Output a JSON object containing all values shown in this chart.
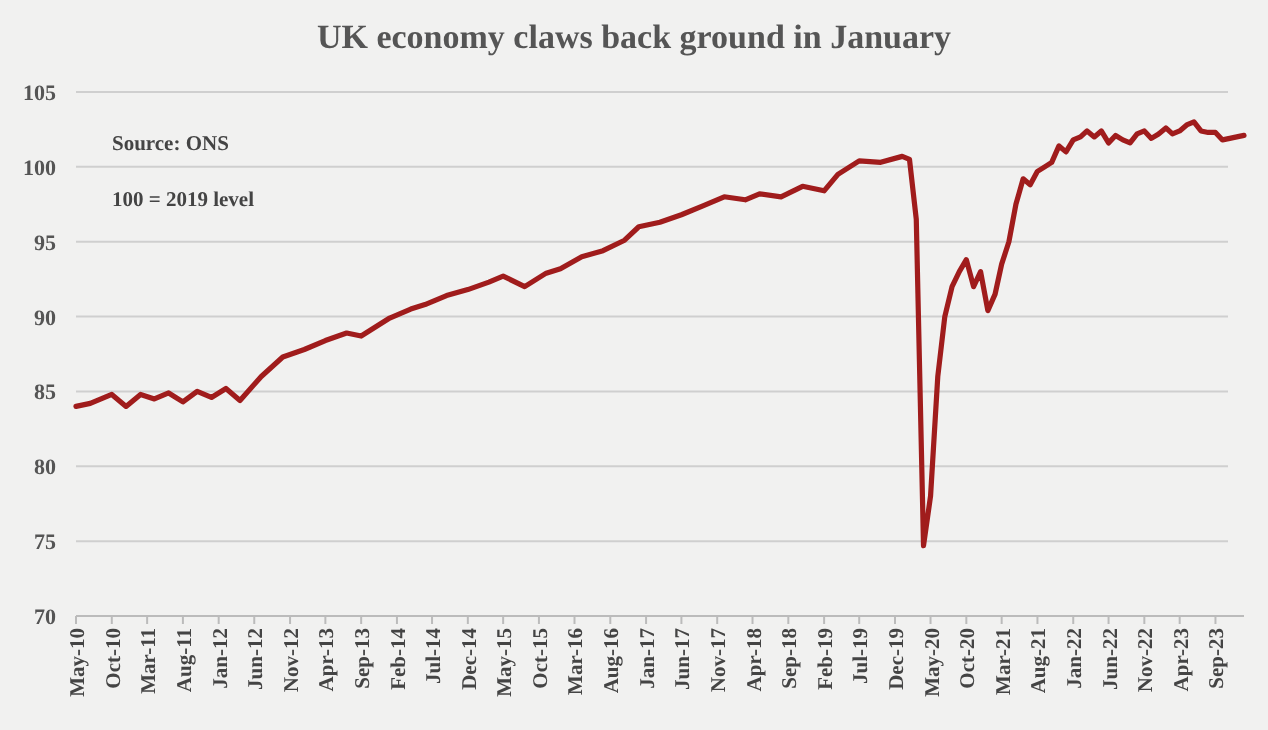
{
  "chart_data": {
    "type": "line",
    "title": "UK economy claws back ground in January",
    "annotations": [
      "Source: ONS",
      "100 = 2019 level"
    ],
    "ylim": [
      70,
      105
    ],
    "yticks": [
      70,
      75,
      80,
      85,
      90,
      95,
      100,
      105
    ],
    "grid": "y",
    "marker": "none",
    "line_style": "solid",
    "xlim": [
      "2010-05",
      "2024-01"
    ],
    "xticks": [
      {
        "value": "2010-05",
        "label": "May-10"
      },
      {
        "value": "2010-10",
        "label": "Oct-10"
      },
      {
        "value": "2011-03",
        "label": "Mar-11"
      },
      {
        "value": "2011-08",
        "label": "Aug-11"
      },
      {
        "value": "2012-01",
        "label": "Jan-12"
      },
      {
        "value": "2012-06",
        "label": "Jun-12"
      },
      {
        "value": "2012-11",
        "label": "Nov-12"
      },
      {
        "value": "2013-04",
        "label": "Apr-13"
      },
      {
        "value": "2013-09",
        "label": "Sep-13"
      },
      {
        "value": "2014-02",
        "label": "Feb-14"
      },
      {
        "value": "2014-07",
        "label": "Jul-14"
      },
      {
        "value": "2014-12",
        "label": "Dec-14"
      },
      {
        "value": "2015-05",
        "label": "May-15"
      },
      {
        "value": "2015-10",
        "label": "Oct-15"
      },
      {
        "value": "2016-03",
        "label": "Mar-16"
      },
      {
        "value": "2016-08",
        "label": "Aug-16"
      },
      {
        "value": "2017-01",
        "label": "Jan-17"
      },
      {
        "value": "2017-06",
        "label": "Jun-17"
      },
      {
        "value": "2017-11",
        "label": "Nov-17"
      },
      {
        "value": "2018-04",
        "label": "Apr-18"
      },
      {
        "value": "2018-09",
        "label": "Sep-18"
      },
      {
        "value": "2019-02",
        "label": "Feb-19"
      },
      {
        "value": "2019-07",
        "label": "Jul-19"
      },
      {
        "value": "2019-12",
        "label": "Dec-19"
      },
      {
        "value": "2020-05",
        "label": "May-20"
      },
      {
        "value": "2020-10",
        "label": "Oct-20"
      },
      {
        "value": "2021-03",
        "label": "Mar-21"
      },
      {
        "value": "2021-08",
        "label": "Aug-21"
      },
      {
        "value": "2022-01",
        "label": "Jan-22"
      },
      {
        "value": "2022-06",
        "label": "Jun-22"
      },
      {
        "value": "2022-11",
        "label": "Nov-22"
      },
      {
        "value": "2023-04",
        "label": "Apr-23"
      },
      {
        "value": "2023-09",
        "label": "Sep-23"
      }
    ],
    "series": [
      {
        "color": "#a01c1c",
        "x": [
          "2010-05",
          "2010-07",
          "2010-10",
          "2010-12",
          "2011-02",
          "2011-04",
          "2011-06",
          "2011-08",
          "2011-10",
          "2011-12",
          "2012-02",
          "2012-04",
          "2012-07",
          "2012-10",
          "2013-01",
          "2013-04",
          "2013-07",
          "2013-09",
          "2014-01",
          "2014-04",
          "2014-06",
          "2014-09",
          "2014-12",
          "2015-03",
          "2015-05",
          "2015-08",
          "2015-11",
          "2016-01",
          "2016-04",
          "2016-07",
          "2016-10",
          "2016-12",
          "2017-03",
          "2017-06",
          "2017-09",
          "2017-12",
          "2018-03",
          "2018-05",
          "2018-08",
          "2018-11",
          "2019-02",
          "2019-04",
          "2019-07",
          "2019-10",
          "2020-01",
          "2020-02",
          "2020-03",
          "2020-04",
          "2020-05",
          "2020-06",
          "2020-07",
          "2020-08",
          "2020-09",
          "2020-10",
          "2020-11",
          "2020-12",
          "2021-01",
          "2021-02",
          "2021-03",
          "2021-04",
          "2021-05",
          "2021-06",
          "2021-07",
          "2021-08",
          "2021-09",
          "2021-10",
          "2021-11",
          "2021-12",
          "2022-01",
          "2022-02",
          "2022-03",
          "2022-04",
          "2022-05",
          "2022-06",
          "2022-07",
          "2022-08",
          "2022-09",
          "2022-10",
          "2022-11",
          "2022-12",
          "2023-01",
          "2023-02",
          "2023-03",
          "2023-04",
          "2023-05",
          "2023-06",
          "2023-07",
          "2023-08",
          "2023-09",
          "2023-10",
          "2023-11",
          "2023-12",
          "2024-01"
        ],
        "values": [
          84.0,
          84.2,
          84.8,
          84.0,
          84.8,
          84.5,
          84.9,
          84.3,
          85.0,
          84.6,
          85.2,
          84.4,
          86.0,
          87.3,
          87.8,
          88.4,
          88.9,
          88.7,
          89.9,
          90.5,
          90.8,
          91.4,
          91.8,
          92.3,
          92.7,
          92.0,
          92.9,
          93.2,
          94.0,
          94.4,
          95.1,
          96.0,
          96.3,
          96.8,
          97.4,
          98.0,
          97.8,
          98.2,
          98.0,
          98.7,
          98.4,
          99.5,
          100.4,
          100.3,
          100.7,
          100.5,
          96.5,
          74.7,
          78.0,
          86.0,
          90.0,
          92.0,
          93.0,
          93.8,
          92.0,
          93.0,
          90.4,
          91.5,
          93.5,
          95.0,
          97.5,
          99.2,
          98.8,
          99.7,
          100.0,
          100.3,
          101.4,
          101.0,
          101.8,
          102.0,
          102.4,
          102.0,
          102.4,
          101.6,
          102.1,
          101.8,
          101.6,
          102.2,
          102.4,
          101.9,
          102.2,
          102.6,
          102.2,
          102.4,
          102.8,
          103.0,
          102.4,
          102.3,
          102.3,
          101.8,
          101.9,
          102.0,
          102.1
        ]
      }
    ]
  }
}
